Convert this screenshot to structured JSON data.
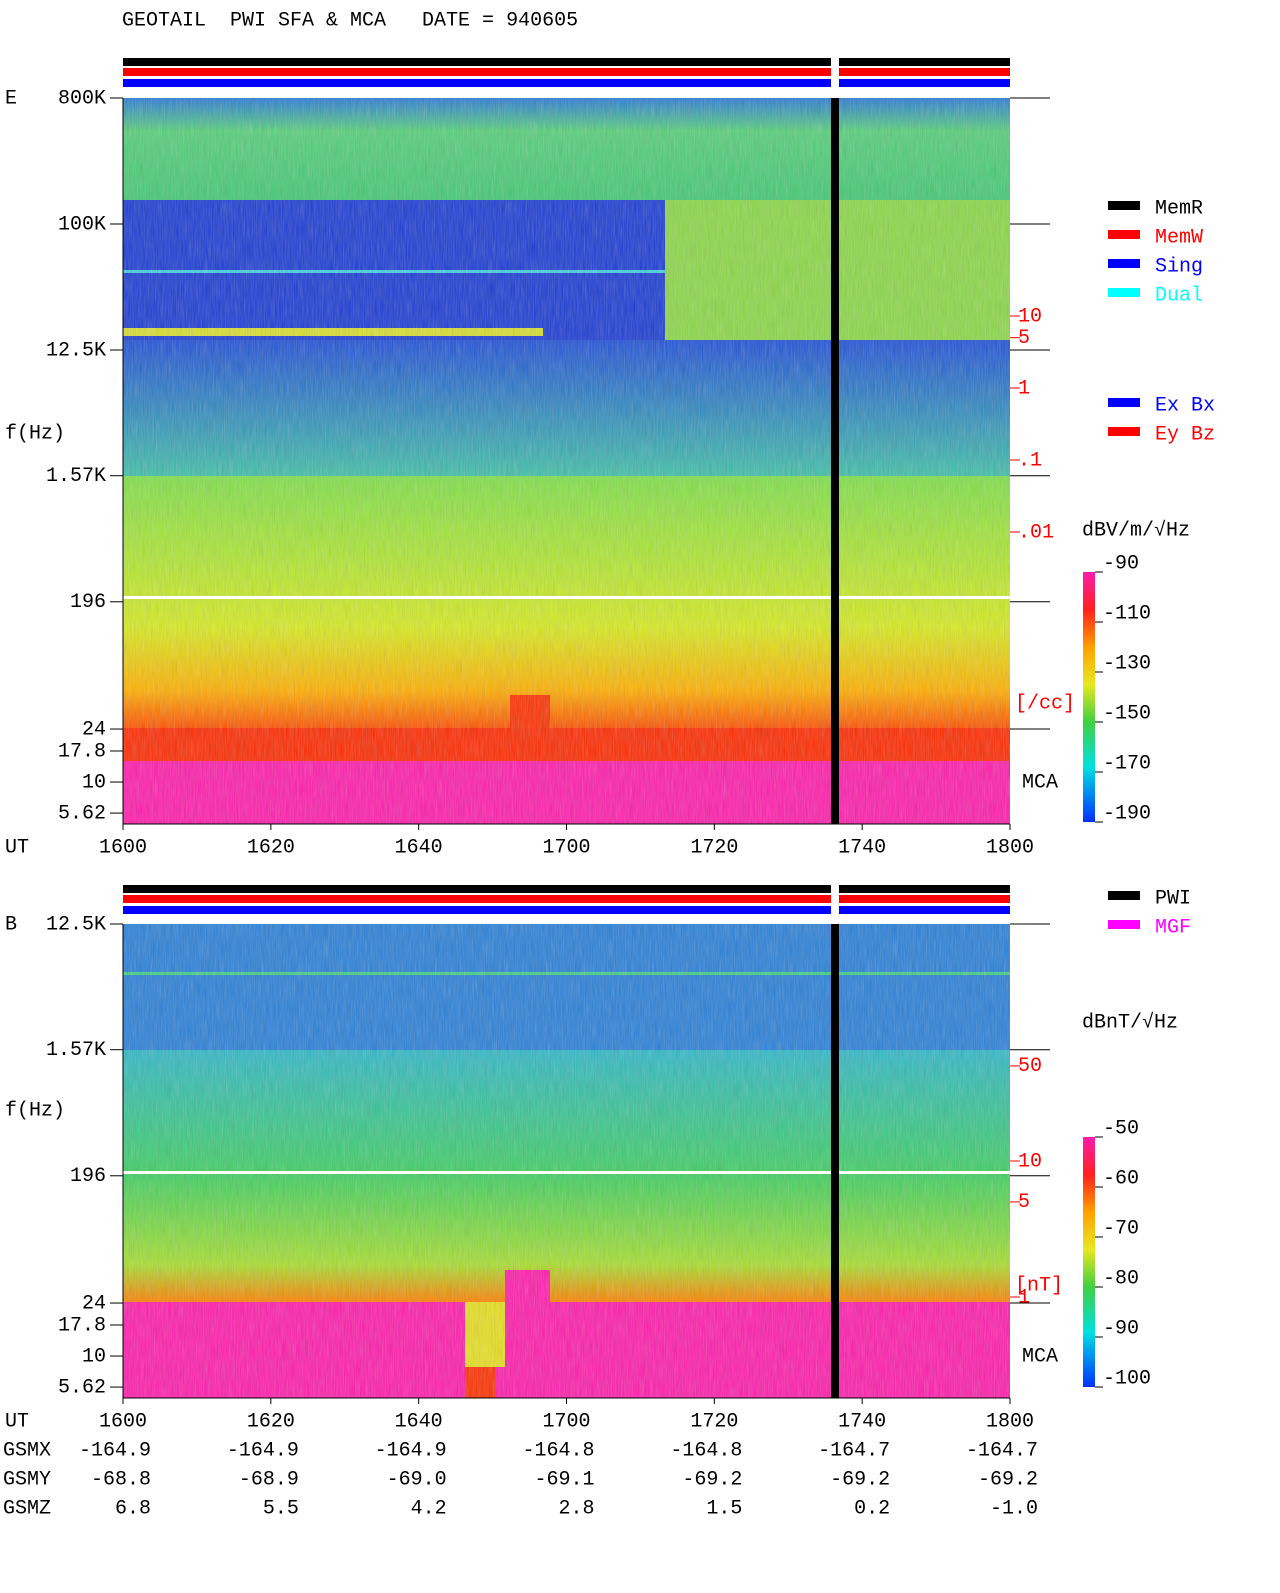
{
  "title": "GEOTAIL  PWI SFA & MCA   DATE = 940605",
  "chart_data": [
    {
      "type": "spectrogram",
      "panel": "E",
      "y_label": "f(Hz)",
      "x_label": "UT",
      "mca_label": "MCA",
      "yticks": [
        {
          "value": 800000,
          "label": "800K"
        },
        {
          "value": 100000,
          "label": "100K"
        },
        {
          "value": 12500,
          "label": "12.5K"
        },
        {
          "value": 1570,
          "label": "1.57K"
        },
        196,
        24,
        17.8,
        10,
        5.62
      ],
      "x_categories": [
        "1600",
        "1620",
        "1640",
        "1700",
        "1720",
        "1740",
        "1800"
      ],
      "colorbar": {
        "label": "dBV/m/√Hz",
        "lim": [
          -90,
          -190
        ],
        "ticks": [
          -90,
          -110,
          -130,
          -150,
          -170,
          -190
        ]
      },
      "density_axis": {
        "unit": "[/cc]",
        "ticks": [
          10,
          5,
          1,
          {
            "value": 0.1,
            "label": ".1"
          },
          {
            "value": 0.01,
            "label": ".01"
          }
        ]
      },
      "legend": [
        {
          "name": "MemR",
          "color": "#000000"
        },
        {
          "name": "MemW",
          "color": "#ff0000"
        },
        {
          "name": "Sing",
          "color": "#0000ff"
        },
        {
          "name": "Dual",
          "color": "#00ffff"
        }
      ],
      "legend2": [
        {
          "name": "Ex Bx",
          "color": "#0000ff"
        },
        {
          "name": "Ey Bz",
          "color": "#ff0000"
        }
      ]
    },
    {
      "type": "spectrogram",
      "panel": "B",
      "y_label": "f(Hz)",
      "x_label": "UT",
      "mca_label": "MCA",
      "yticks": [
        {
          "value": 12500,
          "label": "12.5K"
        },
        {
          "value": 1570,
          "label": "1.57K"
        },
        196,
        24,
        17.8,
        10,
        5.62
      ],
      "x_categories": [
        "1600",
        "1620",
        "1640",
        "1700",
        "1720",
        "1740",
        "1800"
      ],
      "colorbar": {
        "label": "dBnT/√Hz",
        "lim": [
          -50,
          -100
        ],
        "ticks": [
          -50,
          -60,
          -70,
          -80,
          -90,
          -100
        ]
      },
      "density_axis": {
        "unit": "[nT]",
        "ticks": [
          50,
          10,
          5,
          1
        ]
      },
      "legend": [
        {
          "name": "PWI",
          "color": "#000000"
        },
        {
          "name": "MGF",
          "color": "#ff00ff"
        }
      ]
    }
  ],
  "orbit": {
    "rows": [
      {
        "name": "GSMX",
        "values": [
          -164.9,
          -164.9,
          -164.9,
          -164.8,
          -164.8,
          -164.7,
          -164.7
        ]
      },
      {
        "name": "GSMY",
        "values": [
          -68.8,
          -68.9,
          {
            "value": -69,
            "label": "-69.0"
          },
          -69.1,
          -69.2,
          -69.2,
          -69.2
        ]
      },
      {
        "name": "GSMZ",
        "values": [
          6.8,
          5.5,
          4.2,
          2.8,
          1.5,
          0.2,
          {
            "value": -1,
            "label": "-1.0"
          }
        ]
      }
    ]
  }
}
